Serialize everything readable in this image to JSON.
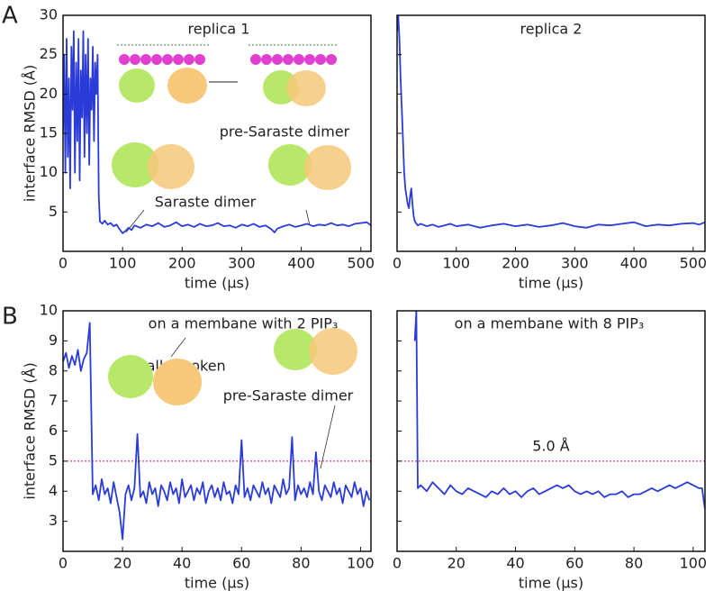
{
  "chart_data": [
    {
      "type": "line",
      "panel_label": "A",
      "title": "replica 1",
      "annotations": [
        "pre-Saraste dimer",
        "Saraste dimer"
      ],
      "xlabel": "time (μs)",
      "ylabel": "interface RMSD (Å)",
      "color": "#2a3bd8",
      "xlim": [
        0,
        517
      ],
      "ylim": [
        0,
        30
      ],
      "xticks": [
        0,
        100,
        200,
        300,
        400,
        500
      ],
      "yticks": [
        5,
        10,
        15,
        20,
        25,
        30
      ],
      "show_ytick_labels": true,
      "x": [
        0,
        2,
        4,
        6,
        8,
        10,
        12,
        14,
        16,
        18,
        20,
        22,
        24,
        26,
        28,
        30,
        32,
        34,
        36,
        38,
        40,
        42,
        44,
        46,
        48,
        50,
        52,
        54,
        56,
        58,
        60,
        62,
        66,
        70,
        75,
        80,
        85,
        90,
        95,
        100,
        105,
        110,
        115,
        120,
        130,
        140,
        150,
        160,
        170,
        180,
        190,
        200,
        210,
        220,
        230,
        240,
        250,
        260,
        270,
        280,
        290,
        300,
        310,
        320,
        330,
        340,
        350,
        355,
        360,
        370,
        380,
        390,
        400,
        410,
        420,
        430,
        440,
        450,
        460,
        470,
        480,
        490,
        500,
        510,
        517
      ],
      "values": [
        15,
        25,
        10,
        27,
        12,
        22,
        8,
        26,
        18,
        28,
        10,
        24,
        14,
        27,
        9,
        23,
        17,
        28,
        12,
        25,
        15,
        27,
        11,
        22,
        18,
        26,
        14,
        24,
        20,
        25,
        7,
        3.8,
        3.5,
        3.9,
        3.4,
        3.6,
        3.2,
        3.4,
        2.8,
        2.3,
        2.6,
        3.0,
        2.7,
        3.3,
        3.0,
        3.4,
        3.2,
        3.6,
        3.1,
        3.3,
        3.7,
        3.2,
        3.4,
        3.1,
        3.5,
        3.2,
        3.3,
        3.6,
        3.2,
        3.3,
        3.0,
        3.4,
        3.2,
        3.5,
        3.1,
        3.3,
        2.8,
        2.4,
        2.9,
        3.2,
        3.4,
        3.1,
        3.3,
        3.5,
        3.2,
        3.4,
        3.3,
        3.6,
        3.3,
        3.4,
        3.2,
        3.5,
        3.6,
        3.7,
        3.3
      ]
    },
    {
      "type": "line",
      "title": "replica 2",
      "xlabel": "time (μs)",
      "color": "#2a3bd8",
      "xlim": [
        0,
        520
      ],
      "ylim": [
        0,
        30
      ],
      "xticks": [
        0,
        100,
        200,
        300,
        400,
        500
      ],
      "yticks": [
        5,
        10,
        15,
        20,
        25,
        30
      ],
      "show_ytick_labels": false,
      "x": [
        0,
        2,
        4,
        6,
        8,
        10,
        12,
        14,
        16,
        18,
        20,
        22,
        24,
        26,
        28,
        30,
        35,
        40,
        50,
        60,
        70,
        80,
        90,
        100,
        120,
        140,
        160,
        180,
        200,
        220,
        240,
        260,
        280,
        300,
        320,
        340,
        360,
        380,
        400,
        420,
        440,
        460,
        480,
        500,
        510,
        520
      ],
      "values": [
        28,
        30,
        27,
        22,
        18,
        14,
        10,
        8,
        7,
        6,
        5.5,
        7,
        8,
        6,
        4.5,
        3.8,
        3.3,
        3.5,
        3.2,
        3.4,
        3.1,
        3.3,
        3.5,
        3.2,
        3.4,
        3.0,
        3.3,
        3.5,
        3.2,
        3.4,
        3.1,
        3.3,
        3.6,
        3.2,
        3.0,
        3.4,
        3.3,
        3.5,
        3.7,
        3.2,
        3.4,
        3.3,
        3.5,
        3.6,
        3.4,
        3.7
      ]
    },
    {
      "type": "line",
      "panel_label": "B",
      "title": "on a membane with 2 PIP₃",
      "annotations": [
        "partially broken",
        "pre-Saraste dimer"
      ],
      "xlabel": "time (μs)",
      "ylabel": "interface RMSD (Å)",
      "color": "#2a3bd8",
      "reference_line": {
        "value": 5,
        "color": "#e0007a"
      },
      "xlim": [
        0,
        103.5
      ],
      "ylim": [
        2,
        10
      ],
      "xticks": [
        0,
        20,
        40,
        60,
        80,
        100
      ],
      "yticks": [
        3,
        4,
        5,
        6,
        7,
        8,
        9,
        10
      ],
      "show_ytick_labels": true,
      "x": [
        0,
        1,
        2,
        3,
        4,
        5,
        6,
        7,
        8,
        9,
        10,
        11,
        12,
        13,
        14,
        15,
        16,
        17,
        18,
        19,
        20,
        21,
        22,
        23,
        24,
        25,
        26,
        27,
        28,
        29,
        30,
        31,
        32,
        33,
        34,
        35,
        36,
        37,
        38,
        39,
        40,
        41,
        42,
        43,
        44,
        45,
        46,
        47,
        48,
        49,
        50,
        51,
        52,
        53,
        54,
        55,
        56,
        57,
        58,
        59,
        60,
        61,
        62,
        63,
        64,
        65,
        66,
        67,
        68,
        69,
        70,
        71,
        72,
        73,
        74,
        75,
        76,
        77,
        78,
        79,
        80,
        81,
        82,
        83,
        84,
        85,
        86,
        87,
        88,
        89,
        90,
        91,
        92,
        93,
        94,
        95,
        96,
        97,
        98,
        99,
        100,
        101,
        102,
        103
      ],
      "values": [
        8.3,
        8.6,
        8.1,
        8.5,
        8.2,
        8.7,
        8.0,
        8.4,
        8.6,
        9.6,
        3.9,
        4.2,
        3.7,
        4.4,
        3.9,
        4.1,
        3.6,
        4.3,
        3.8,
        3.3,
        2.4,
        3.9,
        4.2,
        3.7,
        4.1,
        5.9,
        3.8,
        4.0,
        3.6,
        4.3,
        3.9,
        4.1,
        3.5,
        4.2,
        4.0,
        3.7,
        4.3,
        3.9,
        4.1,
        3.6,
        4.4,
        3.8,
        4.0,
        4.2,
        3.7,
        4.1,
        3.9,
        4.3,
        3.6,
        4.0,
        4.2,
        3.8,
        4.1,
        3.7,
        4.3,
        3.9,
        4.0,
        3.6,
        4.2,
        3.9,
        5.7,
        3.8,
        4.1,
        3.7,
        4.2,
        4.0,
        3.8,
        4.3,
        3.9,
        4.1,
        3.6,
        4.2,
        4.0,
        3.8,
        4.4,
        3.9,
        4.1,
        5.8,
        3.7,
        4.2,
        3.9,
        4.1,
        3.8,
        4.3,
        3.9,
        5.3,
        4.0,
        3.7,
        4.2,
        4.0,
        3.8,
        4.3,
        3.9,
        4.1,
        3.6,
        4.2,
        4.0,
        3.8,
        4.3,
        3.9,
        4.1,
        3.5,
        4.0,
        3.7
      ]
    },
    {
      "type": "line",
      "title": "on a membane with 8 PIP₃",
      "xlabel": "time (μs)",
      "color": "#2a3bd8",
      "reference_line": {
        "value": 5,
        "label": "5.0 Å",
        "color": "#e0007a"
      },
      "xlim": [
        0,
        104
      ],
      "ylim": [
        2,
        10
      ],
      "xticks": [
        0,
        20,
        40,
        60,
        80,
        100
      ],
      "yticks": [
        3,
        4,
        5,
        6,
        7,
        8,
        9,
        10
      ],
      "show_ytick_labels": false,
      "x": [
        6,
        6.5,
        7,
        8,
        10,
        12,
        14,
        16,
        18,
        20,
        22,
        24,
        26,
        28,
        30,
        32,
        34,
        36,
        38,
        40,
        42,
        44,
        46,
        48,
        50,
        52,
        54,
        56,
        58,
        60,
        62,
        64,
        66,
        68,
        70,
        72,
        74,
        76,
        78,
        80,
        82,
        84,
        86,
        88,
        90,
        92,
        94,
        96,
        98,
        100,
        102,
        103,
        104
      ],
      "values": [
        9,
        10,
        4.1,
        4.2,
        4.0,
        4.3,
        4.1,
        3.9,
        4.2,
        4.0,
        3.9,
        4.1,
        4.0,
        3.9,
        3.8,
        4.0,
        3.9,
        4.1,
        3.9,
        4.0,
        3.8,
        4.0,
        4.1,
        3.9,
        4.0,
        4.1,
        4.2,
        4.1,
        4.2,
        4.0,
        3.9,
        4.0,
        3.9,
        4.0,
        3.8,
        3.9,
        3.9,
        4.0,
        3.8,
        3.9,
        3.9,
        4.0,
        4.1,
        4.0,
        4.1,
        4.2,
        4.1,
        4.2,
        4.3,
        4.2,
        4.1,
        4.1,
        3.4
      ]
    }
  ]
}
